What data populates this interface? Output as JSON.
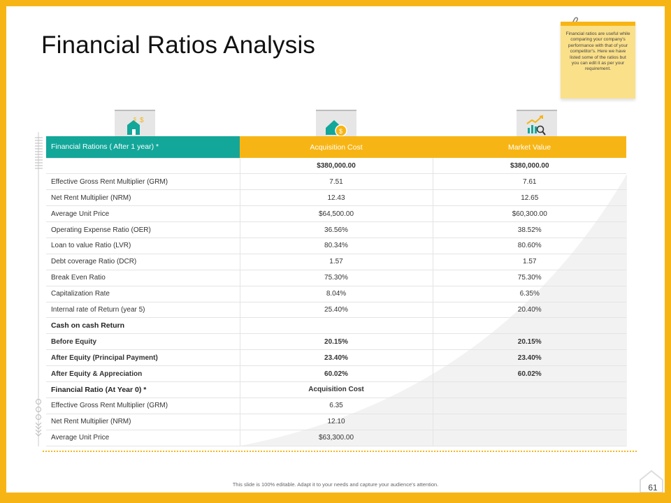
{
  "title": "Financial Ratios Analysis",
  "note": "Financial ratios are useful while comparing your company's performance with that of your competitor's. Here we have listed some of the ratios but you can edit it as per your requirement.",
  "icons": [
    "house-dollar-icon",
    "coin-house-icon",
    "chart-search-icon"
  ],
  "table": {
    "header": [
      "Financial Rations ( After 1 year) *",
      "Acquisition Cost",
      "Market Value"
    ],
    "rows": [
      {
        "label": "",
        "a": "$380,000.00",
        "b": "$380,000.00",
        "style": "bold"
      },
      {
        "label": "Effective Gross Rent Multiplier (GRM)",
        "a": "7.51",
        "b": "7.61",
        "style": ""
      },
      {
        "label": "Net Rent Multiplier (NRM)",
        "a": "12.43",
        "b": "12.65",
        "style": ""
      },
      {
        "label": "Average Unit Price",
        "a": "$64,500.00",
        "b": "$60,300.00",
        "style": ""
      },
      {
        "label": "Operating Expense Ratio (OER)",
        "a": "36.56%",
        "b": "38.52%",
        "style": ""
      },
      {
        "label": "Loan to value Ratio (LVR)",
        "a": "80.34%",
        "b": "80.60%",
        "style": ""
      },
      {
        "label": "Debt coverage Ratio (DCR)",
        "a": "1.57",
        "b": "1.57",
        "style": ""
      },
      {
        "label": "Break Even Ratio",
        "a": "75.30%",
        "b": "75.30%",
        "style": ""
      },
      {
        "label": "Capitalization Rate",
        "a": "8.04%",
        "b": "6.35%",
        "style": ""
      },
      {
        "label": "Internal rate of Return (year 5)",
        "a": "25.40%",
        "b": "20.40%",
        "style": ""
      },
      {
        "label": "Cash on cash Return",
        "a": "",
        "b": "",
        "style": "sec"
      },
      {
        "label": "Before Equity",
        "a": "20.15%",
        "b": "20.15%",
        "style": "bold"
      },
      {
        "label": "After Equity (Principal Payment)",
        "a": "23.40%",
        "b": "23.40%",
        "style": "bold"
      },
      {
        "label": "After Equity & Appreciation",
        "a": "60.02%",
        "b": "60.02%",
        "style": "bold"
      },
      {
        "label": "Financial Ratio (At Year 0) *",
        "a": "Acquisition Cost",
        "b": "",
        "style": "sec"
      },
      {
        "label": "Effective Gross Rent Multiplier (GRM)",
        "a": "6.35",
        "b": "",
        "style": ""
      },
      {
        "label": "Net Rent Multiplier (NRM)",
        "a": "12.10",
        "b": "",
        "style": ""
      },
      {
        "label": "Average Unit Price",
        "a": "$63,300.00",
        "b": "",
        "style": ""
      }
    ]
  },
  "footer": "This slide is 100% editable. Adapt it to your needs and capture your audience's attention.",
  "page_number": "61",
  "colors": {
    "border": "#f7b515",
    "teal": "#13a79a",
    "header_orange": "#f7b515"
  }
}
